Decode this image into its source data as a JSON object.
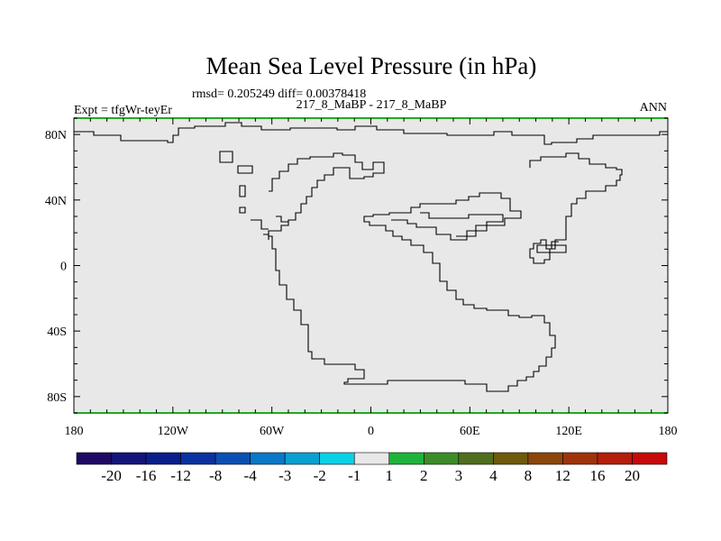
{
  "title": "Mean Sea Level Pressure (in hPa)",
  "stats": "rmsd= 0.205249 diff= 0.00378418",
  "left_label": "Expt = tfgWr-teyEr",
  "center_label": "217_8_MaBP - 217_8_MaBP",
  "right_label": "ANN",
  "lat_labels": [
    "80N",
    "40N",
    "0",
    "40S",
    "80S"
  ],
  "lon_labels": [
    "180",
    "120W",
    "60W",
    "0",
    "60E",
    "120E",
    "180"
  ],
  "colorbar": {
    "labels": [
      "-20",
      "-16",
      "-12",
      "-8",
      "-4",
      "-3",
      "-2",
      "-1",
      "1",
      "2",
      "3",
      "4",
      "8",
      "12",
      "16",
      "20"
    ],
    "colors": [
      "#1e0a64",
      "#14147a",
      "#0a1e8c",
      "#0a32a0",
      "#0a50b4",
      "#0a78c8",
      "#0aa0d2",
      "#0ad2e6",
      "#e8e8e8",
      "#1eb43c",
      "#3c8c28",
      "#506e1e",
      "#6e5a0a",
      "#8c460a",
      "#a0320a",
      "#b41e0a",
      "#c80a0a"
    ]
  },
  "map": {
    "fill_color": "#e8e8e8",
    "edge_color": "#22aa22"
  }
}
